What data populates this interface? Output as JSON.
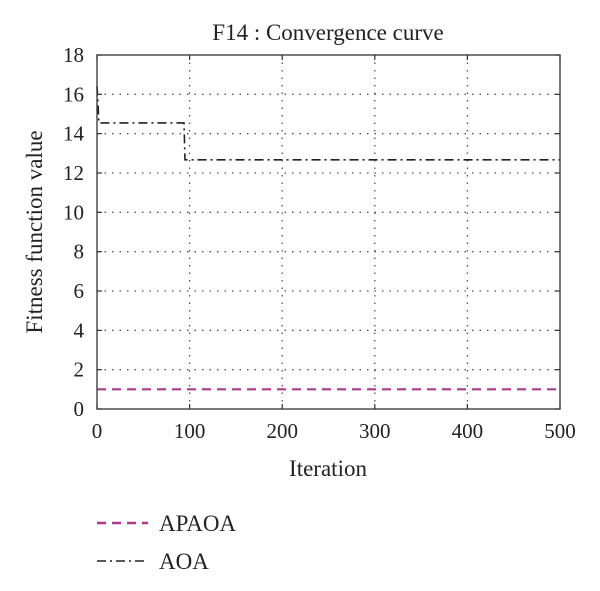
{
  "chart_data": {
    "type": "line",
    "title": "F14 : Convergence curve",
    "xlabel": "Iteration",
    "ylabel": "Fitness function value",
    "xlim": [
      0,
      500
    ],
    "ylim": [
      0,
      18
    ],
    "xticks": [
      0,
      100,
      200,
      300,
      400,
      500
    ],
    "yticks": [
      0,
      2,
      4,
      6,
      8,
      10,
      12,
      14,
      16,
      18
    ],
    "grid": true,
    "legend_position": "below-left",
    "series": [
      {
        "name": "APAOA",
        "color": "#b0388f",
        "line_style": "dashed",
        "x": [
          0,
          500
        ],
        "y": [
          1.0,
          1.0
        ]
      },
      {
        "name": "AOA",
        "color": "#222222",
        "line_style": "dash-dot",
        "x": [
          0,
          1,
          2,
          3,
          94,
          95,
          500
        ],
        "y": [
          16.4,
          15.6,
          14.55,
          14.55,
          14.55,
          12.67,
          12.67
        ]
      }
    ]
  }
}
